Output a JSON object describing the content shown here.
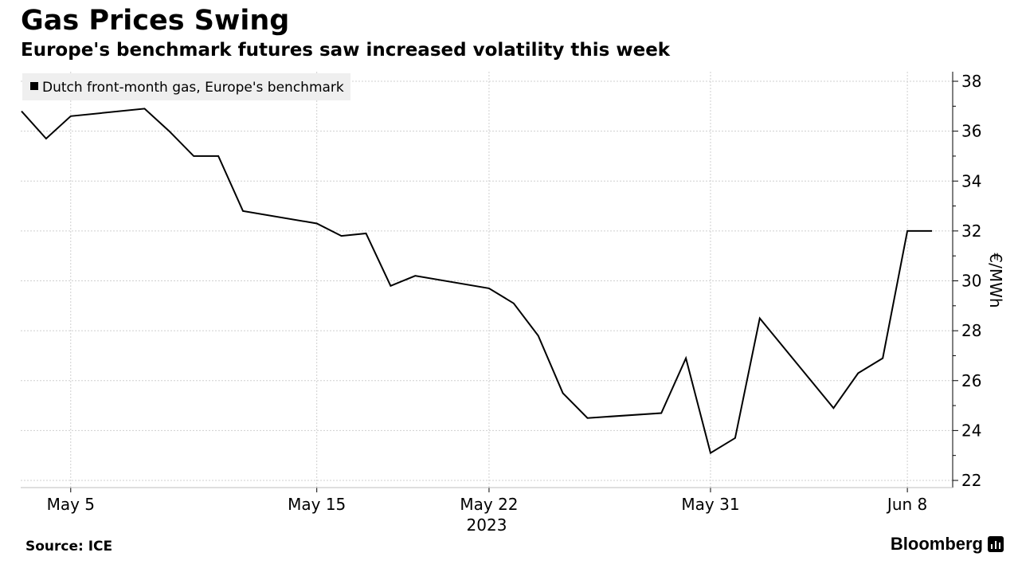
{
  "header": {
    "title": "Gas Prices Swing",
    "subtitle": "Europe's benchmark futures saw increased volatility this week"
  },
  "footer": {
    "source": "Source: ICE",
    "brand": "Bloomberg"
  },
  "icons": {
    "brand": "bloomberg-terminal-icon",
    "legend": "legend-square-icon"
  },
  "colors": {
    "line": "#000000",
    "grid": "#cfcfcf",
    "legend_bg": "#efefef"
  },
  "chart_data": {
    "type": "line",
    "legend": "top-left",
    "grid": true,
    "ylabel": "€/MWh",
    "year_label": "2023",
    "ylim": [
      22,
      38
    ],
    "yticks": [
      22,
      24,
      26,
      28,
      30,
      32,
      34,
      36,
      38
    ],
    "xlim": [
      "2023-05-01",
      "2023-06-10"
    ],
    "xticks": [
      {
        "date": "2023-05-05",
        "label": "May 5"
      },
      {
        "date": "2023-05-15",
        "label": "May 15"
      },
      {
        "date": "2023-05-22",
        "label": "May 22"
      },
      {
        "date": "2023-05-31",
        "label": "May 31"
      },
      {
        "date": "2023-06-08",
        "label": "Jun 8"
      }
    ],
    "series": [
      {
        "name": "Dutch front-month gas, Europe's benchmark",
        "x": [
          "2023-05-03",
          "2023-05-04",
          "2023-05-05",
          "2023-05-08",
          "2023-05-09",
          "2023-05-10",
          "2023-05-11",
          "2023-05-12",
          "2023-05-15",
          "2023-05-16",
          "2023-05-17",
          "2023-05-18",
          "2023-05-19",
          "2023-05-22",
          "2023-05-23",
          "2023-05-24",
          "2023-05-25",
          "2023-05-26",
          "2023-05-29",
          "2023-05-30",
          "2023-05-31",
          "2023-06-01",
          "2023-06-02",
          "2023-06-05",
          "2023-06-06",
          "2023-06-07",
          "2023-06-08",
          "2023-06-09"
        ],
        "values": [
          36.8,
          35.7,
          36.6,
          36.9,
          36.0,
          35.0,
          35.0,
          32.8,
          32.3,
          31.8,
          31.9,
          29.8,
          30.2,
          29.7,
          29.1,
          27.8,
          25.5,
          24.5,
          24.7,
          26.9,
          23.1,
          23.7,
          28.5,
          24.9,
          26.3,
          26.9,
          32.0,
          32.0
        ]
      }
    ]
  }
}
